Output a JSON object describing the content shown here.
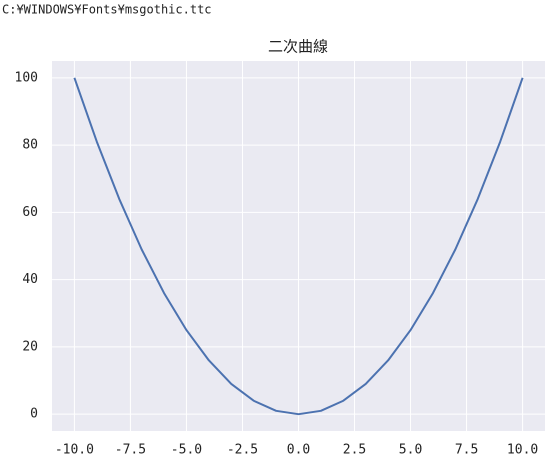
{
  "header_text": "C:¥WINDOWS¥Fonts¥msgothic.ttc",
  "chart_data": {
    "type": "line",
    "title": "二次曲線",
    "x": [
      -10,
      -9,
      -8,
      -7,
      -6,
      -5,
      -4,
      -3,
      -2,
      -1,
      0,
      1,
      2,
      3,
      4,
      5,
      6,
      7,
      8,
      9,
      10
    ],
    "series": [
      {
        "color": "#4c72b0",
        "values": [
          100,
          81,
          64,
          49,
          36,
          25,
          16,
          9,
          4,
          1,
          0,
          1,
          4,
          9,
          16,
          25,
          36,
          49,
          64,
          81,
          100
        ]
      }
    ],
    "xlim": [
      -11,
      11
    ],
    "ylim": [
      -5,
      105
    ],
    "xticks": [
      {
        "value": -10,
        "label": "-10.0"
      },
      {
        "value": -7.5,
        "label": "-7.5"
      },
      {
        "value": -5,
        "label": "-5.0"
      },
      {
        "value": -2.5,
        "label": "-2.5"
      },
      {
        "value": 0,
        "label": "0.0"
      },
      {
        "value": 2.5,
        "label": "2.5"
      },
      {
        "value": 5,
        "label": "5.0"
      },
      {
        "value": 7.5,
        "label": "7.5"
      },
      {
        "value": 10,
        "label": "10.0"
      }
    ],
    "yticks": [
      0,
      20,
      40,
      60,
      80,
      100
    ],
    "grid": true,
    "background": "#eaeaf2"
  }
}
